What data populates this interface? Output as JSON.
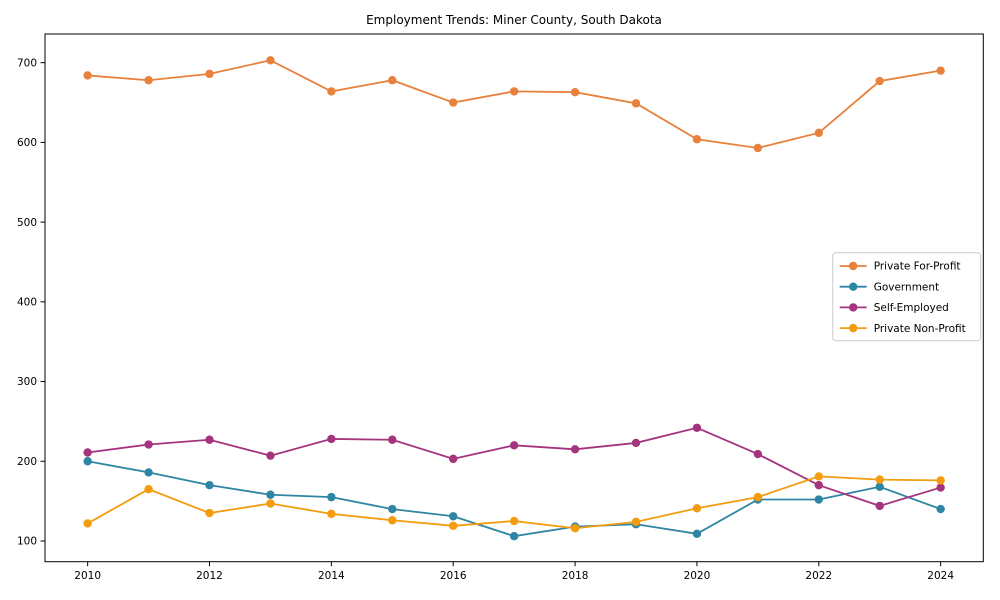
{
  "figure": {
    "title": "Employment Trends: Miner County, South Dakota"
  },
  "chart_data": {
    "type": "line",
    "title": "Employment Trends: Miner County, South Dakota",
    "xlabel": "",
    "ylabel": "",
    "grid": false,
    "legend_position": "center right",
    "x": [
      2010,
      2011,
      2012,
      2013,
      2014,
      2015,
      2016,
      2017,
      2018,
      2019,
      2020,
      2021,
      2022,
      2023,
      2024
    ],
    "xticks": [
      2010,
      2012,
      2014,
      2016,
      2018,
      2020,
      2022,
      2024
    ],
    "yticks": [
      100,
      200,
      300,
      400,
      500,
      600,
      700
    ],
    "xlim": [
      2009.3,
      2024.7
    ],
    "ylim": [
      74,
      736
    ],
    "axis_color": "#000000",
    "series": [
      {
        "name": "Private For-Profit",
        "color": "#E8813C",
        "values": [
          684,
          678,
          686,
          703,
          664,
          678,
          650,
          664,
          663,
          649,
          604,
          593,
          612,
          677,
          690
        ]
      },
      {
        "name": "Government",
        "color": "#2E86A4",
        "values": [
          200,
          186,
          170,
          158,
          155,
          140,
          131,
          106,
          118,
          121,
          109,
          152,
          152,
          168,
          140
        ]
      },
      {
        "name": "Self-Employed",
        "color": "#A5347E",
        "values": [
          211,
          221,
          227,
          207,
          228,
          227,
          203,
          220,
          215,
          223,
          242,
          209,
          170,
          144,
          167
        ]
      },
      {
        "name": "Private Non-Profit",
        "color": "#F39C0F",
        "values": [
          122,
          165,
          135,
          147,
          134,
          126,
          119,
          125,
          116,
          124,
          141,
          155,
          181,
          177,
          176
        ]
      }
    ]
  }
}
